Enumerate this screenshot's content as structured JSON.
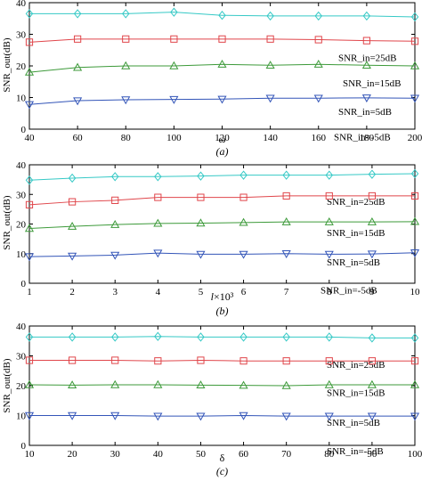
{
  "colors": {
    "cyan": "#36c9c6",
    "red": "#e0464b",
    "green": "#3d9a3a",
    "blue": "#3355b8",
    "axis": "#000000"
  },
  "chart_data": [
    {
      "type": "line",
      "xlabel": "ω",
      "caption": "(a)",
      "ylabel": "SNR_out(dB)",
      "xlim": [
        40,
        200
      ],
      "ylim": [
        0,
        40
      ],
      "xticks": [
        "40",
        "60",
        "80",
        "100",
        "120",
        "140",
        "160",
        "180",
        "200"
      ],
      "yticks": [
        "0",
        "10",
        "20",
        "30",
        "40"
      ],
      "x": [
        40,
        60,
        80,
        100,
        120,
        140,
        160,
        180,
        200
      ],
      "series": [
        {
          "name": "SNR_in=25dB",
          "marker": "diamond",
          "color": "#36c9c6",
          "values": [
            36.5,
            36.5,
            36.5,
            37,
            36,
            35.8,
            35.8,
            35.8,
            35.5
          ]
        },
        {
          "name": "SNR_in=15dB",
          "marker": "square",
          "color": "#e0464b",
          "values": [
            27.5,
            28.5,
            28.5,
            28.5,
            28.5,
            28.5,
            28.3,
            28,
            27.8
          ]
        },
        {
          "name": "SNR_in=5dB",
          "marker": "triangle-up",
          "color": "#3d9a3a",
          "values": [
            18,
            19.5,
            20,
            20,
            20.5,
            20.2,
            20.5,
            20.2,
            20
          ]
        },
        {
          "name": "SNR_in=-5dB",
          "marker": "triangle-down",
          "color": "#3355b8",
          "values": [
            7.8,
            9,
            9.3,
            9.4,
            9.5,
            9.8,
            9.8,
            9.9,
            9.8
          ]
        }
      ]
    },
    {
      "type": "line",
      "xlabel": "l×10³",
      "caption": "(b)",
      "ylabel": "SNR_out(dB)",
      "xlim": [
        1,
        10
      ],
      "ylim": [
        0,
        40
      ],
      "xticks": [
        "1",
        "2",
        "3",
        "4",
        "5",
        "6",
        "7",
        "8",
        "9",
        "10"
      ],
      "yticks": [
        "0",
        "10",
        "20",
        "30",
        "40"
      ],
      "x": [
        1,
        2,
        3,
        4,
        5,
        6,
        7,
        8,
        9,
        10
      ],
      "series": [
        {
          "name": "SNR_in=25dB",
          "marker": "diamond",
          "color": "#36c9c6",
          "values": [
            34.8,
            35.5,
            36,
            36,
            36.2,
            36.5,
            36.5,
            36.5,
            36.8,
            37
          ]
        },
        {
          "name": "SNR_in=15dB",
          "marker": "square",
          "color": "#e0464b",
          "values": [
            26.5,
            27.5,
            28,
            29,
            29,
            29,
            29.5,
            29.5,
            29.5,
            29.5
          ]
        },
        {
          "name": "SNR_in=5dB",
          "marker": "triangle-up",
          "color": "#3d9a3a",
          "values": [
            18.5,
            19.2,
            19.8,
            20.2,
            20.3,
            20.5,
            20.7,
            20.7,
            20.7,
            20.8
          ]
        },
        {
          "name": "SNR_in=-5dB",
          "marker": "triangle-down",
          "color": "#3355b8",
          "values": [
            9,
            9.2,
            9.5,
            10.2,
            9.8,
            9.8,
            10,
            9.8,
            9.9,
            10.3
          ]
        }
      ]
    },
    {
      "type": "line",
      "xlabel": "δ",
      "caption": "(c)",
      "ylabel": "SNR_out(dB)",
      "xlim": [
        10,
        100
      ],
      "ylim": [
        0,
        40
      ],
      "xticks": [
        "10",
        "20",
        "30",
        "40",
        "50",
        "60",
        "70",
        "80",
        "90",
        "100"
      ],
      "yticks": [
        "0",
        "10",
        "20",
        "30",
        "40"
      ],
      "x": [
        10,
        20,
        30,
        40,
        50,
        60,
        70,
        80,
        90,
        100
      ],
      "series": [
        {
          "name": "SNR_in=25dB",
          "marker": "diamond",
          "color": "#36c9c6",
          "values": [
            36.3,
            36.3,
            36.3,
            36.5,
            36.3,
            36.3,
            36.3,
            36.3,
            36,
            36
          ]
        },
        {
          "name": "SNR_in=15dB",
          "marker": "square",
          "color": "#e0464b",
          "values": [
            28.5,
            28.5,
            28.5,
            28.3,
            28.5,
            28.3,
            28.3,
            28.3,
            28.3,
            28.3
          ]
        },
        {
          "name": "SNR_in=5dB",
          "marker": "triangle-up",
          "color": "#3d9a3a",
          "values": [
            20.3,
            20.2,
            20.3,
            20.3,
            20.2,
            20.1,
            20,
            20.3,
            20.3,
            20.3
          ]
        },
        {
          "name": "SNR_in=-5dB",
          "marker": "triangle-down",
          "color": "#3355b8",
          "values": [
            10,
            10,
            10,
            9.8,
            9.8,
            10,
            9.8,
            9.8,
            9.8,
            9.8
          ]
        }
      ]
    }
  ]
}
